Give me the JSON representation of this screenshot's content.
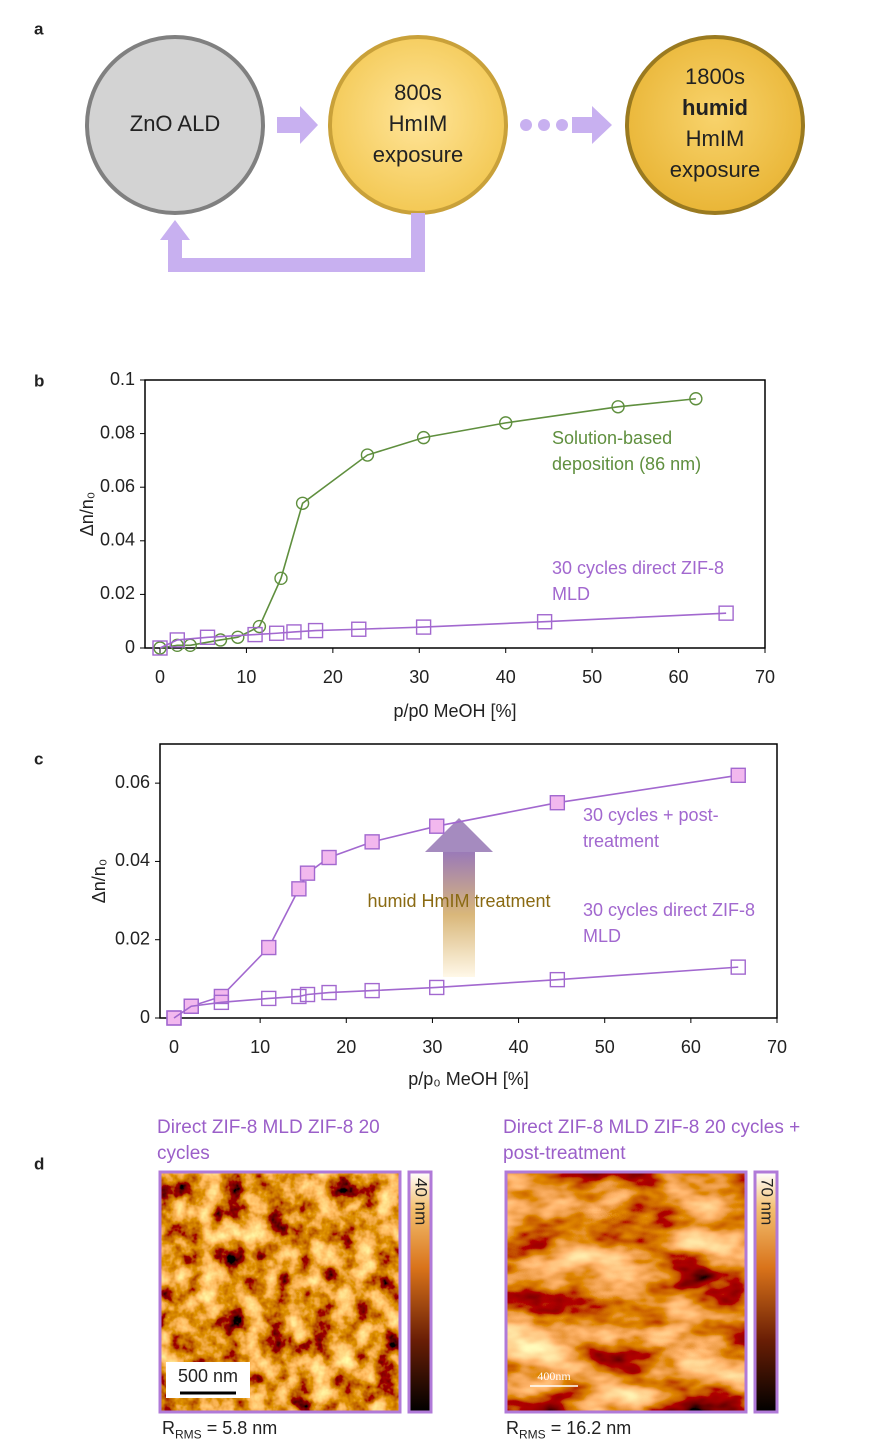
{
  "panel_a": {
    "label": "a",
    "nodes": [
      {
        "lines": [
          "ZnO ALD"
        ]
      },
      {
        "lines": [
          "800s",
          "HmIM",
          "exposure"
        ]
      },
      {
        "lines": [
          "1800s",
          "humid",
          "HmIM",
          "exposure"
        ]
      }
    ]
  },
  "chart_data": [
    {
      "type": "line",
      "panel": "b",
      "xlabel": "p/p0 MeOH [%]",
      "ylabel": "Δn/n₀",
      "xlim": [
        0,
        70
      ],
      "xticks": [
        0,
        10,
        20,
        30,
        40,
        50,
        60,
        70
      ],
      "ylim": [
        0,
        0.1
      ],
      "yticks": [
        0,
        0.02,
        0.04,
        0.06,
        0.08,
        0.1
      ],
      "series": [
        {
          "name": "Solution-based deposition (86 nm)",
          "color": "#5f8f3e",
          "marker": "circle",
          "filled": false,
          "x": [
            0,
            2,
            3.5,
            7,
            9,
            11.5,
            14,
            16.5,
            24,
            30.5,
            40,
            53,
            62
          ],
          "values": [
            0,
            0.001,
            0.001,
            0.003,
            0.004,
            0.008,
            0.026,
            0.054,
            0.072,
            0.0785,
            0.084,
            0.09,
            0.093
          ]
        },
        {
          "name": "30 cycles direct ZIF-8 MLD",
          "color": "#a268cf",
          "marker": "square",
          "filled": false,
          "x": [
            0,
            2,
            5.5,
            11,
            13.5,
            15.5,
            18,
            23,
            30.5,
            44.5,
            65.5
          ],
          "values": [
            0,
            0.003,
            0.004,
            0.005,
            0.0055,
            0.006,
            0.0065,
            0.007,
            0.0078,
            0.0098,
            0.013
          ]
        }
      ]
    },
    {
      "type": "line",
      "panel": "c",
      "xlabel": "p/p₀ MeOH [%]",
      "ylabel": "Δn/n₀",
      "annotation": "humid HmIM treatment",
      "xlim": [
        0,
        70
      ],
      "xticks": [
        0,
        10,
        20,
        30,
        40,
        50,
        60,
        70
      ],
      "ylim": [
        0,
        0.07
      ],
      "yticks": [
        0,
        0.02,
        0.04,
        0.06
      ],
      "series": [
        {
          "name": "30 cycles + post-treatment",
          "color": "#a268cf",
          "fill": "#f2b8ee",
          "marker": "square",
          "filled": true,
          "x": [
            0,
            2,
            5.5,
            11,
            14.5,
            15.5,
            18,
            23,
            30.5,
            44.5,
            65.5
          ],
          "values": [
            0,
            0.003,
            0.0055,
            0.018,
            0.033,
            0.037,
            0.041,
            0.045,
            0.049,
            0.055,
            0.062
          ]
        },
        {
          "name": "30 cycles direct ZIF-8 MLD",
          "color": "#a268cf",
          "marker": "square",
          "filled": false,
          "x": [
            0,
            2,
            5.5,
            11,
            14.5,
            15.5,
            18,
            23,
            30.5,
            44.5,
            65.5
          ],
          "values": [
            0,
            0.003,
            0.004,
            0.005,
            0.0055,
            0.006,
            0.0065,
            0.007,
            0.0078,
            0.0098,
            0.013
          ]
        }
      ]
    }
  ],
  "panel_d": {
    "label": "d",
    "images": [
      {
        "title": "Direct ZIF-8 MLD ZIF-8 20 cycles",
        "colorbar": "40 nm",
        "scalebar": "500 nm",
        "rms": {
          "symbol": "R",
          "subscript": "RMS",
          "value": "= 5.8 nm"
        }
      },
      {
        "title": "Direct ZIF-8 MLD ZIF-8 20 cycles + post-treatment",
        "colorbar": "70 nm",
        "scalebar": "400nm",
        "rms": {
          "symbol": "R",
          "subscript": "RMS",
          "value": "= 16.2 nm"
        }
      }
    ]
  }
}
